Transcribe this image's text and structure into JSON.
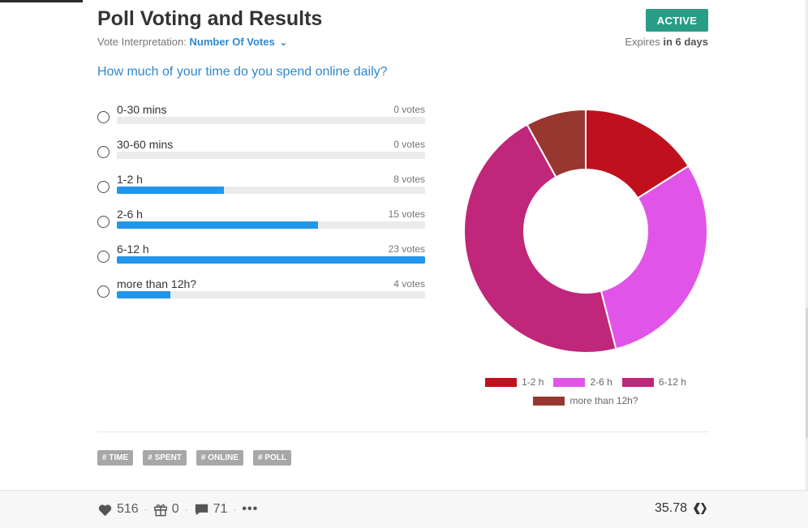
{
  "header": {
    "title": "Poll Voting and Results",
    "interpretation_label": "Vote Interpretation:",
    "interpretation_value": "Number Of Votes",
    "status": "ACTIVE",
    "expires_prefix": "Expires",
    "expires_value": "in 6 days"
  },
  "poll": {
    "question": "How much of your time do you spend online daily?",
    "max_votes": 23,
    "options": [
      {
        "label": "0-30 mins",
        "votes": 0,
        "votes_text": "0 votes"
      },
      {
        "label": "30-60 mins",
        "votes": 0,
        "votes_text": "0 votes"
      },
      {
        "label": "1-2 h",
        "votes": 8,
        "votes_text": "8 votes"
      },
      {
        "label": "2-6 h",
        "votes": 15,
        "votes_text": "15 votes"
      },
      {
        "label": "6-12 h",
        "votes": 23,
        "votes_text": "23 votes"
      },
      {
        "label": "more than 12h?",
        "votes": 4,
        "votes_text": "4 votes"
      }
    ]
  },
  "chart_data": {
    "type": "pie",
    "donut": true,
    "categories": [
      "1-2 h",
      "2-6 h",
      "6-12 h",
      "more than 12h?"
    ],
    "values": [
      8,
      15,
      23,
      4
    ],
    "colors": [
      "#c0101e",
      "#e055e8",
      "#c0267a",
      "#983630"
    ],
    "legend": "bottom"
  },
  "tags": [
    "# TIME",
    "# SPENT",
    "# ONLINE",
    "# POLL"
  ],
  "footer": {
    "likes": "516",
    "reblogs": "0",
    "comments": "71",
    "more": "•••",
    "payout": "35.78",
    "separator": "·"
  },
  "colors": {
    "accent": "#2e88d0",
    "bar": "#2196eb",
    "active": "#2a9d86"
  }
}
